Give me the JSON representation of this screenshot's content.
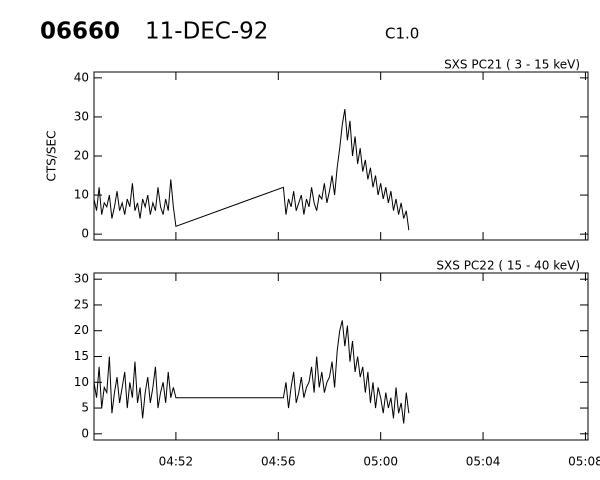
{
  "header": {
    "id": "06660",
    "date": "11-DEC-92",
    "class": "C1.0"
  },
  "chart_data": [
    {
      "type": "line",
      "title": "SXS PC21  (  3 - 15 keV)",
      "y_label": "CTS/SEC",
      "x": [
        288.8,
        288.9,
        289.0,
        289.1,
        289.2,
        289.3,
        289.4,
        289.5,
        289.6,
        289.7,
        289.8,
        289.9,
        290.0,
        290.1,
        290.2,
        290.3,
        290.4,
        290.5,
        290.6,
        290.7,
        290.8,
        290.9,
        291.0,
        291.1,
        291.2,
        291.3,
        291.4,
        291.5,
        291.6,
        291.7,
        291.8,
        291.9,
        292.0,
        296.2,
        296.3,
        296.4,
        296.5,
        296.6,
        296.7,
        296.8,
        296.9,
        297.0,
        297.1,
        297.2,
        297.3,
        297.4,
        297.5,
        297.6,
        297.7,
        297.8,
        297.9,
        298.0,
        298.1,
        298.2,
        298.3,
        298.4,
        298.5,
        298.6,
        298.7,
        298.8,
        298.9,
        299.0,
        299.1,
        299.2,
        299.3,
        299.4,
        299.5,
        299.6,
        299.7,
        299.8,
        299.9,
        300.0,
        300.1,
        300.2,
        300.3,
        300.4,
        300.5,
        300.6,
        300.7,
        300.8,
        300.9,
        301.0,
        301.1
      ],
      "series": [
        {
          "color": "#000000",
          "values": [
            9,
            6,
            12,
            5,
            8,
            7,
            10,
            4,
            7,
            11,
            6,
            8,
            5,
            9,
            7,
            13,
            6,
            8,
            4,
            9,
            7,
            10,
            5,
            8,
            6,
            12,
            7,
            5,
            9,
            6,
            14,
            7,
            2,
            12,
            5,
            9,
            7,
            11,
            6,
            8,
            10,
            5,
            9,
            7,
            12,
            8,
            6,
            10,
            9,
            13,
            8,
            11,
            15,
            10,
            17,
            22,
            28,
            32,
            24,
            29,
            20,
            25,
            18,
            22,
            16,
            19,
            14,
            17,
            12,
            15,
            10,
            13,
            9,
            12,
            8,
            11,
            6,
            9,
            5,
            8,
            4,
            6,
            1
          ]
        }
      ],
      "xlim": [
        288.8,
        308.1
      ],
      "ylim": [
        -1.5,
        41.5
      ],
      "xticks": [
        292,
        296,
        300,
        304,
        308
      ],
      "yticks": [
        0,
        10,
        20,
        30,
        40
      ]
    },
    {
      "type": "line",
      "title": "SXS PC22  ( 15 - 40 keV)",
      "x": [
        288.8,
        288.9,
        289.0,
        289.1,
        289.2,
        289.3,
        289.4,
        289.5,
        289.6,
        289.7,
        289.8,
        289.9,
        290.0,
        290.1,
        290.2,
        290.3,
        290.4,
        290.5,
        290.6,
        290.7,
        290.8,
        290.9,
        291.0,
        291.1,
        291.2,
        291.3,
        291.4,
        291.5,
        291.6,
        291.7,
        291.8,
        291.9,
        292.0,
        296.2,
        296.3,
        296.4,
        296.5,
        296.6,
        296.7,
        296.8,
        296.9,
        297.0,
        297.1,
        297.2,
        297.3,
        297.4,
        297.5,
        297.6,
        297.7,
        297.8,
        297.9,
        298.0,
        298.1,
        298.2,
        298.3,
        298.4,
        298.5,
        298.6,
        298.7,
        298.8,
        298.9,
        299.0,
        299.1,
        299.2,
        299.3,
        299.4,
        299.5,
        299.6,
        299.7,
        299.8,
        299.9,
        300.0,
        300.1,
        300.2,
        300.3,
        300.4,
        300.5,
        300.6,
        300.7,
        300.8,
        300.9,
        301.0,
        301.1
      ],
      "series": [
        {
          "color": "#000000",
          "values": [
            10,
            7,
            13,
            5,
            9,
            8,
            15,
            4,
            8,
            11,
            6,
            9,
            12,
            5,
            10,
            7,
            14,
            6,
            9,
            3,
            8,
            11,
            6,
            9,
            13,
            5,
            8,
            10,
            6,
            12,
            7,
            9,
            7,
            7,
            10,
            5,
            9,
            12,
            6,
            8,
            11,
            7,
            9,
            10,
            13,
            8,
            15,
            9,
            12,
            8,
            10,
            11,
            14,
            9,
            16,
            20,
            22,
            17,
            21,
            14,
            18,
            12,
            15,
            11,
            13,
            8,
            12,
            6,
            10,
            5,
            9,
            7,
            4,
            8,
            5,
            7,
            3,
            9,
            4,
            6,
            2,
            8,
            4
          ]
        }
      ],
      "xlim": [
        288.8,
        308.1
      ],
      "ylim": [
        -1.2,
        31.2
      ],
      "xticks": [
        {
          "value": 292,
          "label": "04:52"
        },
        {
          "value": 296,
          "label": "04:56"
        },
        {
          "value": 300,
          "label": "05:00"
        },
        {
          "value": 304,
          "label": "05:04"
        },
        {
          "value": 308,
          "label": "05:08"
        }
      ],
      "yticks": [
        0,
        5,
        10,
        15,
        20,
        25,
        30
      ]
    }
  ]
}
